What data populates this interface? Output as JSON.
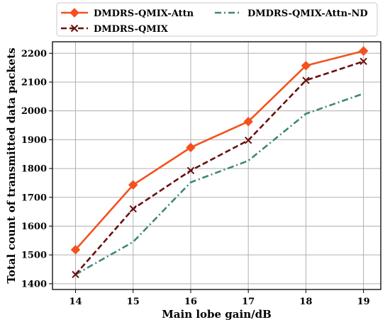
{
  "chart_data": {
    "type": "line",
    "x": [
      14,
      15,
      16,
      17,
      18,
      19
    ],
    "xlabel": "Main lobe gain/dB",
    "ylabel": "Total count of transmitted data packets",
    "xlim": [
      13.6,
      19.3
    ],
    "ylim": [
      1380,
      2240
    ],
    "x_ticks": [
      "14",
      "15",
      "16",
      "17",
      "18",
      "19"
    ],
    "y_ticks": [
      "1400",
      "1500",
      "1600",
      "1700",
      "1800",
      "1900",
      "2000",
      "2100",
      "2200"
    ],
    "grid": true,
    "legend_position": "top",
    "series": [
      {
        "name": "DMDRS-QMIX-Attn",
        "values": [
          1518,
          1743,
          1873,
          1963,
          2157,
          2208
        ],
        "color": "#f4511e",
        "line_style": "solid",
        "marker": "diamond"
      },
      {
        "name": "DMDRS-QMIX",
        "values": [
          1432,
          1660,
          1793,
          1898,
          2106,
          2172
        ],
        "color": "#6b0f0f",
        "line_style": "dashed",
        "marker": "x"
      },
      {
        "name": "DMDRS-QMIX-Attn-ND",
        "values": [
          1432,
          1545,
          1752,
          1827,
          1990,
          2060
        ],
        "color": "#3f8677",
        "line_style": "dashdot",
        "marker": "none"
      }
    ]
  }
}
